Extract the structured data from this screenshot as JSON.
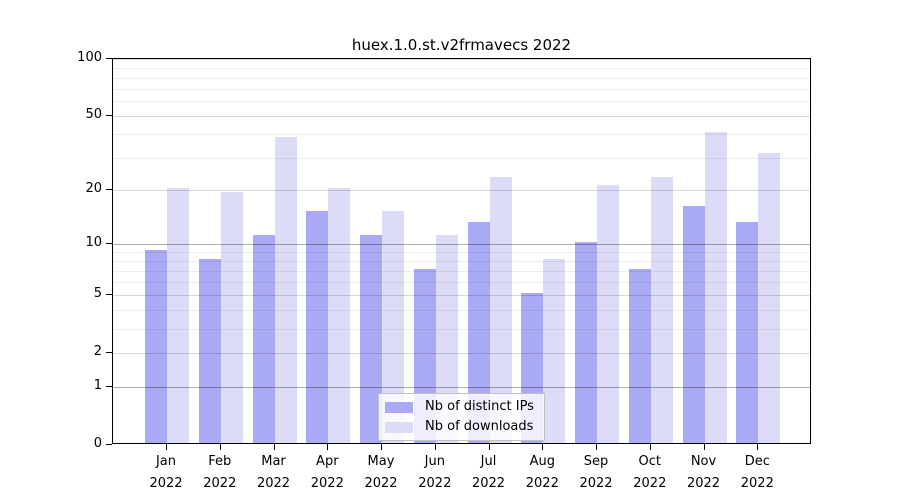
{
  "chart_data": {
    "type": "bar",
    "title": "huex.1.0.st.v2frmavecs 2022",
    "categories": [
      "Jan",
      "Feb",
      "Mar",
      "Apr",
      "May",
      "Jun",
      "Jul",
      "Aug",
      "Sep",
      "Oct",
      "Nov",
      "Dec"
    ],
    "year_label": "2022",
    "series": [
      {
        "name": "Nb of distinct IPs",
        "color": "#a9a9f4",
        "values": [
          9,
          8,
          11,
          15,
          11,
          7,
          13,
          5,
          10,
          7,
          16,
          13
        ]
      },
      {
        "name": "Nb of downloads",
        "color": "#dcdcf8",
        "values": [
          20,
          19,
          38,
          20,
          15,
          11,
          23,
          8,
          21,
          23,
          40,
          31
        ]
      }
    ],
    "y_axis": {
      "scale": "log1p",
      "ylim": [
        0,
        100
      ],
      "ticks": [
        0,
        1,
        2,
        5,
        10,
        20,
        50,
        100
      ],
      "minor_gridlines": [
        3,
        4,
        6,
        7,
        8,
        9,
        30,
        40,
        60,
        70,
        80,
        90
      ],
      "emphasized_gridlines": [
        1,
        10
      ]
    },
    "legend": {
      "position": "bottom-center",
      "entries": [
        "Nb of distinct IPs",
        "Nb of downloads"
      ]
    },
    "grid": "on"
  }
}
